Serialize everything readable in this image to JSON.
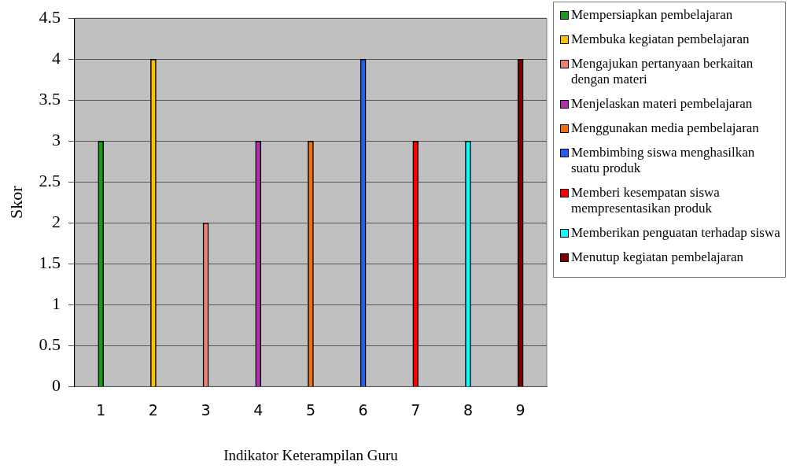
{
  "chart_data": {
    "type": "bar",
    "xlabel": "Indikator Keterampilan Guru",
    "ylabel": "Skor",
    "categories": [
      "1",
      "2",
      "3",
      "4",
      "5",
      "6",
      "7",
      "8",
      "9"
    ],
    "series": [
      {
        "name": "Mempersiapkan pembelajaran",
        "color": "#1a9a1a",
        "values": [
          3,
          null,
          null,
          null,
          null,
          null,
          null,
          null,
          null
        ]
      },
      {
        "name": "Membuka kegiatan pembelajaran",
        "color": "#ffc000",
        "values": [
          null,
          4,
          null,
          null,
          null,
          null,
          null,
          null,
          null
        ]
      },
      {
        "name": "Mengajukan pertanyaan berkaitan dengan materi",
        "color": "#f08070",
        "values": [
          null,
          null,
          2,
          null,
          null,
          null,
          null,
          null,
          null
        ]
      },
      {
        "name": "Menjelaskan materi pembelajaran",
        "color": "#b030b0",
        "values": [
          null,
          null,
          null,
          3,
          null,
          null,
          null,
          null,
          null
        ]
      },
      {
        "name": "Menggunakan media pembelajaran",
        "color": "#f07010",
        "values": [
          null,
          null,
          null,
          null,
          3,
          null,
          null,
          null,
          null
        ]
      },
      {
        "name": "Membimbing siswa menghasilkan suatu produk",
        "color": "#2060f0",
        "values": [
          null,
          null,
          null,
          null,
          null,
          4,
          null,
          null,
          null
        ]
      },
      {
        "name": "Memberi kesempatan siswa mempresentasikan produk",
        "color": "#ff0000",
        "values": [
          null,
          null,
          null,
          null,
          null,
          null,
          3,
          null,
          null
        ]
      },
      {
        "name": "Memberikan penguatan terhadap siswa",
        "color": "#00ffff",
        "values": [
          null,
          null,
          null,
          null,
          null,
          null,
          null,
          3,
          null
        ]
      },
      {
        "name": "Menutup kegiatan pembelajaran",
        "color": "#800000",
        "values": [
          null,
          null,
          null,
          null,
          null,
          null,
          null,
          null,
          4
        ]
      }
    ],
    "ylim": [
      0,
      4.5
    ],
    "yticks": [
      0,
      0.5,
      1,
      1.5,
      2,
      2.5,
      3,
      3.5,
      4,
      4.5
    ],
    "grid": "y",
    "legend": "right"
  }
}
